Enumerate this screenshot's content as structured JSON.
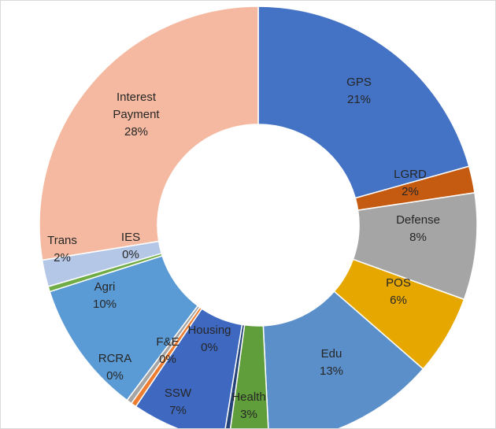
{
  "chart_data": {
    "type": "donut",
    "categories": [
      "GPS",
      "LGRD",
      "Defense",
      "POS",
      "Edu",
      "Health",
      "Housing",
      "SSW",
      "F&E",
      "RCRA",
      "Agri",
      "IES",
      "Trans",
      "Interest Payment"
    ],
    "values": [
      21,
      2,
      8,
      6,
      13,
      3,
      0.4,
      7,
      0.4,
      0.4,
      10,
      0.4,
      2,
      28
    ],
    "value_labels": [
      "21%",
      "2%",
      "8%",
      "6%",
      "13%",
      "3%",
      "0%",
      "7%",
      "0%",
      "0%",
      "10%",
      "0%",
      "2%",
      "28%"
    ],
    "colors": [
      "#4472c4",
      "#c55a11",
      "#a5a5a5",
      "#e6a800",
      "#5b8fc9",
      "#5f9e3a",
      "#264478",
      "#3f68c1",
      "#ed7d31",
      "#a5a5a5",
      "#5b9bd5",
      "#70ad47",
      "#b4c7e7",
      "#f4b9a0"
    ]
  }
}
